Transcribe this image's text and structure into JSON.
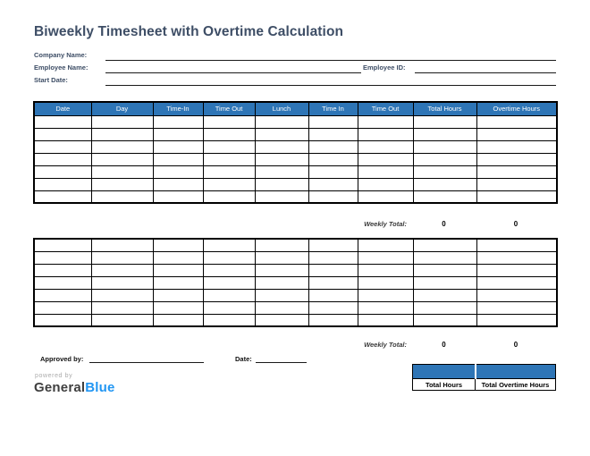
{
  "page": {
    "title": "Biweekly Timesheet with Overtime Calculation"
  },
  "form": {
    "company_name_label": "Company Name:",
    "company_name_value": "",
    "employee_name_label": "Employee Name:",
    "employee_name_value": "",
    "employee_id_label": "Employee ID:",
    "employee_id_value": "",
    "start_date_label": "Start Date:",
    "start_date_value": ""
  },
  "timesheet": {
    "columns": [
      "Date",
      "Day",
      "Time-In",
      "Time Out",
      "Lunch",
      "Time In",
      "Time Out",
      "Total Hours",
      "Overtime Hours"
    ],
    "rows_per_week": 7,
    "weeks": [
      {
        "weekly_total_label": "Weekly Total:",
        "total_hours": "0",
        "overtime_hours": "0"
      },
      {
        "weekly_total_label": "Weekly Total:",
        "total_hours": "0",
        "overtime_hours": "0"
      }
    ]
  },
  "footer": {
    "approved_by_label": "Approved by:",
    "approved_by_value": "",
    "date_label": "Date:",
    "date_value": "",
    "powered_by": "powered by",
    "brand_name_dark": "General",
    "brand_name_blue": "Blue"
  },
  "summary": {
    "total_hours_value": "",
    "total_overtime_hours_value": "",
    "total_hours_label": "Total Hours",
    "total_overtime_hours_label": "Total Overtime Hours"
  },
  "colors": {
    "header_blue": "#2E75B6",
    "title_navy": "#3E4E66",
    "brand_blue": "#2196F3"
  }
}
